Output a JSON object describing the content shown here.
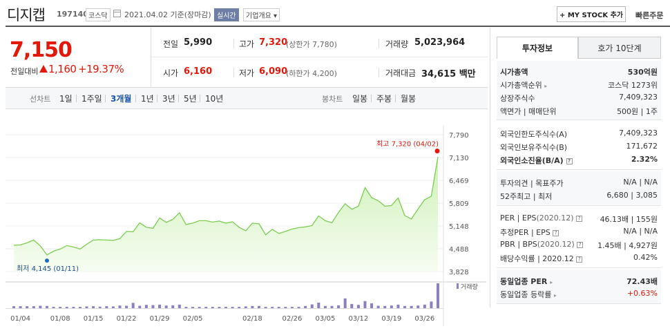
{
  "header": {
    "stock_name": "디지캡",
    "stock_code": "197140",
    "market": "코스닥",
    "as_of": "2021.04.02 기준(장마감)",
    "realtime": "실시간",
    "company_info": "기업개요 ▾",
    "my_stock": "+ MY STOCK 추가",
    "quick_order": "빠른주문"
  },
  "price": {
    "current": "7,150",
    "change_label": "전일대비",
    "change": "1,160",
    "change_rate": "+19.37%",
    "direction_color": "#e3170a"
  },
  "quote": {
    "prev_label": "전일",
    "prev": "5,990",
    "high_label": "고가",
    "high": "7,320",
    "upper_limit": "(상한가 7,780)",
    "volume_label": "거래량",
    "volume": "5,023,964",
    "open_label": "시가",
    "open": "6,160",
    "low_label": "저가",
    "low": "6,090",
    "lower_limit": "(하한가 4,200)",
    "amount_label": "거래대금",
    "amount": "34,615 백만"
  },
  "periods": {
    "line_label": "선차트",
    "line_options": [
      "1일",
      "1주일",
      "3개월",
      "1년",
      "3년",
      "5년",
      "10년"
    ],
    "active": "3개월",
    "candle_label": "봉차트",
    "candle_options": [
      "일봉",
      "주봉",
      "월봉"
    ]
  },
  "chart_data": {
    "type": "area",
    "y_ticks": [
      "7,790",
      "7,130",
      "6,469",
      "5,809",
      "5,148",
      "4,488",
      "3,828"
    ],
    "ylim": [
      3828,
      7790
    ],
    "x_ticks": [
      "01/04",
      "01/08",
      "01/15",
      "01/22",
      "01/29",
      "02/05",
      "02/18",
      "02/26",
      "03/05",
      "03/12",
      "03/19",
      "03/26"
    ],
    "price": [
      4590,
      4600,
      4660,
      4740,
      4570,
      4310,
      4420,
      4480,
      4580,
      4540,
      4480,
      4620,
      4740,
      4750,
      4740,
      4730,
      4780,
      4990,
      4980,
      5240,
      5110,
      5080,
      5380,
      5250,
      5340,
      5530,
      5190,
      5230,
      5300,
      5300,
      5260,
      5290,
      5230,
      5270,
      5110,
      5010,
      5230,
      5210,
      4890,
      5050,
      4930,
      4990,
      5060,
      5100,
      5120,
      5160,
      5440,
      5300,
      5240,
      5540,
      5790,
      5630,
      5720,
      6260,
      5970,
      5880,
      5720,
      5740,
      5960,
      5450,
      5350,
      5640,
      5910,
      6010,
      7150
    ],
    "volume": [
      0.9,
      0.9,
      0.9,
      0.9,
      1.1,
      1.0,
      0.6,
      0.6,
      0.6,
      0.6,
      0.6,
      0.8,
      0.9,
      0.7,
      0.9,
      0.8,
      1.2,
      1.1,
      2.4,
      1.1,
      1.5,
      1.4,
      1.6,
      1.2,
      1.3,
      1.6,
      0.6,
      0.6,
      0.6,
      0.6,
      0.6,
      0.6,
      0.6,
      0.6,
      0.6,
      0.8,
      1.0,
      1.0,
      0.6,
      0.6,
      0.6,
      0.6,
      0.6,
      0.6,
      1.0,
      1.7,
      2.5,
      1.0,
      1.0,
      1.3,
      4.4,
      1.9,
      1.5,
      3.2,
      2.2,
      1.1,
      1.0,
      1.2,
      1.6,
      1.0,
      1.0,
      1.2,
      1.6,
      3.0,
      11.2
    ],
    "volume_label": "거래량",
    "high_label": "최고 7,320 (04/02)",
    "low_label": "최저 4,145 (01/11)",
    "high_value": 7320,
    "low_value": 4145,
    "line_color": "#7acd4e",
    "volume_color": "#8e7fc0"
  },
  "panel": {
    "tab_invest": "투자정보",
    "tab_orderbook": "호가 10단계",
    "market_cap_label": "시가총액",
    "market_cap": "530억원",
    "cap_rank_label": "시가총액순위",
    "cap_rank": "코스닥 1273위",
    "shares_label": "상장주식수",
    "shares": "7,409,323",
    "par_label": "액면가 | 매매단위",
    "par": "500원 | 1주",
    "foreign_limit_label": "외국인한도주식수(A)",
    "foreign_limit": "7,409,323",
    "foreign_hold_label": "외국인보유주식수(B)",
    "foreign_hold": "171,672",
    "foreign_ratio_label": "외국인소진율(B/A)",
    "foreign_ratio": "2.32%",
    "opinion_label": "투자의견 | 목표주가",
    "opinion": "N/A | N/A",
    "range52_label": "52주최고 | 최저",
    "range52": "6,680 | 3,085",
    "per_label": "PER | EPS",
    "per_date": "(2020.12)",
    "per": "46.13배 | 155원",
    "est_per_label": "추정PER | EPS",
    "est_per": "N/A | N/A",
    "pbr_label": "PBR | BPS",
    "pbr_date": "(2020.12)",
    "pbr": "1.45배 | 4,927원",
    "div_label": "배당수익률 | 2020.12",
    "div": "0.42%",
    "sector_per_label": "동일업종 PER",
    "sector_per": "72.43배",
    "sector_rate_label": "동일업종 등락률",
    "sector_rate": "+0.63%"
  }
}
